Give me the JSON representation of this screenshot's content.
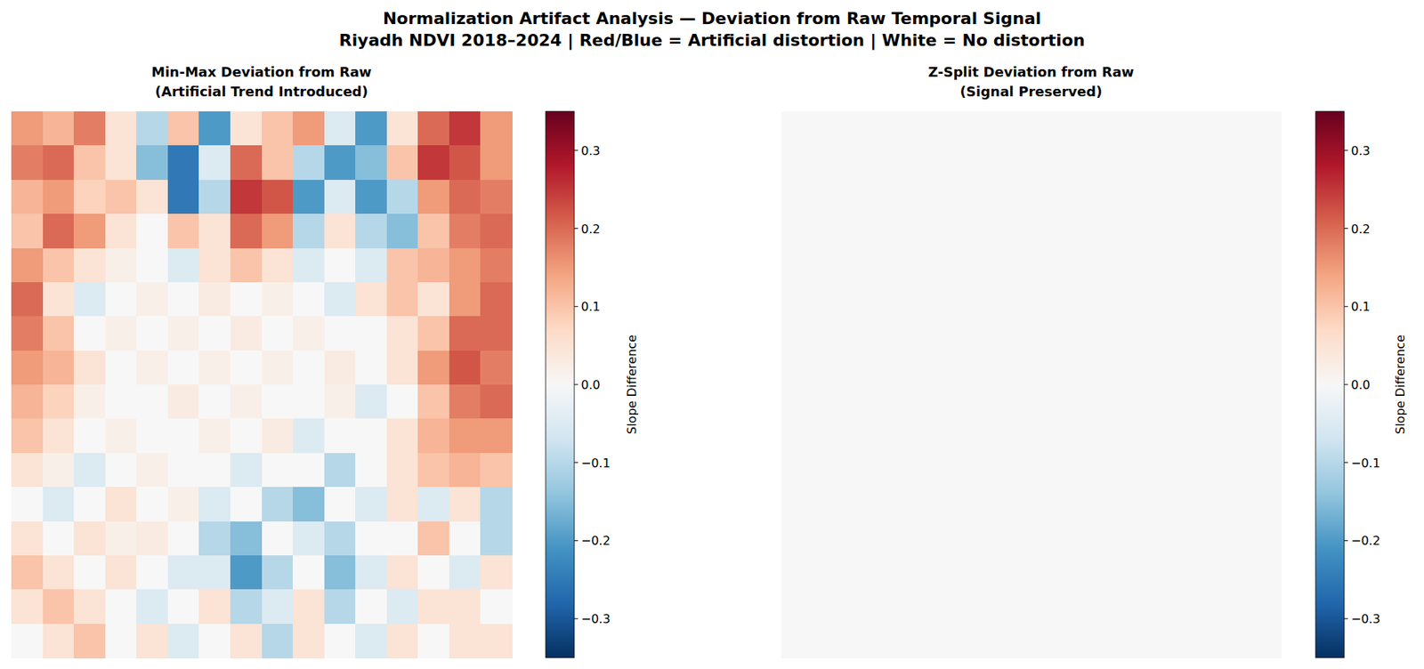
{
  "figure": {
    "title": "Normalization Artifact Analysis — Deviation from Raw Temporal Signal",
    "subtitle": "Riyadh NDVI 2018–2024 | Red/Blue = Artificial distortion | White = No distortion"
  },
  "chart_data": [
    {
      "type": "heatmap",
      "title": "Min-Max Deviation from Raw",
      "subtitle": "(Artificial Trend Introduced)",
      "tick_labels": false,
      "colorbar_label": "Slope Difference",
      "color_range": [
        -0.35,
        0.35
      ],
      "color_ticks": [
        {
          "value": -0.3,
          "label": "−0.3"
        },
        {
          "value": -0.2,
          "label": "−0.2"
        },
        {
          "value": -0.1,
          "label": "−0.1"
        },
        {
          "value": 0,
          "label": "0.0"
        },
        {
          "value": 0.1,
          "label": "0.1"
        },
        {
          "value": 0.2,
          "label": "0.2"
        },
        {
          "value": 0.3,
          "label": "0.3"
        }
      ],
      "values": [
        [
          0.15,
          0.12,
          0.18,
          0.05,
          -0.1,
          0.1,
          -0.2,
          0.05,
          0.1,
          0.15,
          -0.05,
          -0.2,
          0.05,
          0.2,
          0.25,
          0.15
        ],
        [
          0.18,
          0.2,
          0.1,
          0.05,
          -0.15,
          -0.25,
          -0.05,
          0.2,
          0.1,
          -0.1,
          -0.2,
          -0.15,
          0.1,
          0.25,
          0.22,
          0.15
        ],
        [
          0.12,
          0.15,
          0.08,
          0.1,
          0.05,
          -0.25,
          -0.1,
          0.25,
          0.22,
          -0.2,
          -0.05,
          -0.2,
          -0.1,
          0.15,
          0.2,
          0.18
        ],
        [
          0.1,
          0.2,
          0.15,
          0.05,
          0.0,
          0.1,
          0.05,
          0.2,
          0.15,
          -0.1,
          0.05,
          -0.1,
          -0.15,
          0.1,
          0.18,
          0.2
        ],
        [
          0.15,
          0.1,
          0.05,
          0.02,
          0.0,
          -0.05,
          0.05,
          0.1,
          0.05,
          -0.05,
          0.0,
          -0.05,
          0.1,
          0.12,
          0.15,
          0.18
        ],
        [
          0.2,
          0.05,
          -0.05,
          0.0,
          0.02,
          0.0,
          0.03,
          0.0,
          0.02,
          0.0,
          -0.05,
          0.05,
          0.1,
          0.05,
          0.15,
          0.2
        ],
        [
          0.18,
          0.1,
          0.0,
          0.02,
          0.0,
          0.02,
          0.0,
          0.03,
          0.0,
          0.02,
          0.0,
          0.0,
          0.05,
          0.1,
          0.2,
          0.2
        ],
        [
          0.15,
          0.12,
          0.05,
          0.0,
          0.02,
          0.0,
          0.02,
          0.0,
          0.02,
          0.0,
          0.03,
          0.0,
          0.05,
          0.15,
          0.22,
          0.18
        ],
        [
          0.12,
          0.08,
          0.02,
          0.0,
          0.0,
          0.03,
          0.0,
          0.02,
          0.0,
          0.0,
          0.02,
          -0.05,
          0.0,
          0.1,
          0.18,
          0.2
        ],
        [
          0.1,
          0.05,
          0.0,
          0.02,
          0.0,
          0.0,
          0.02,
          0.0,
          0.03,
          -0.05,
          0.0,
          0.0,
          0.05,
          0.12,
          0.15,
          0.15
        ],
        [
          0.05,
          0.02,
          -0.05,
          0.0,
          0.02,
          0.0,
          0.0,
          -0.05,
          0.0,
          0.0,
          -0.1,
          0.0,
          0.05,
          0.1,
          0.12,
          0.1
        ],
        [
          0.0,
          -0.05,
          0.0,
          0.05,
          0.0,
          0.02,
          -0.05,
          0.0,
          -0.1,
          -0.15,
          0.0,
          -0.05,
          0.05,
          -0.05,
          0.05,
          -0.1
        ],
        [
          0.05,
          0.0,
          0.05,
          0.02,
          0.03,
          0.0,
          -0.1,
          -0.15,
          0.0,
          -0.05,
          -0.1,
          0.0,
          0.0,
          0.1,
          0.0,
          -0.1
        ],
        [
          0.1,
          0.05,
          0.0,
          0.05,
          0.0,
          -0.05,
          -0.05,
          -0.2,
          -0.1,
          0.0,
          -0.15,
          -0.05,
          0.05,
          0.0,
          -0.05,
          0.05
        ],
        [
          0.05,
          0.1,
          0.05,
          0.0,
          -0.05,
          0.0,
          0.05,
          -0.1,
          -0.05,
          0.05,
          -0.1,
          0.0,
          -0.05,
          0.05,
          0.05,
          0.0
        ],
        [
          0.0,
          0.05,
          0.1,
          0.0,
          0.05,
          -0.05,
          0.0,
          0.05,
          -0.1,
          0.05,
          0.0,
          -0.05,
          0.05,
          0.0,
          0.05,
          0.05
        ]
      ]
    },
    {
      "type": "heatmap",
      "title": "Z-Split Deviation from Raw",
      "subtitle": "(Signal Preserved)",
      "tick_labels": false,
      "colorbar_label": "Slope Difference",
      "color_range": [
        -0.35,
        0.35
      ],
      "color_ticks": [
        {
          "value": -0.3,
          "label": "−0.3"
        },
        {
          "value": -0.2,
          "label": "−0.2"
        },
        {
          "value": -0.1,
          "label": "−0.1"
        },
        {
          "value": 0,
          "label": "0.0"
        },
        {
          "value": 0.1,
          "label": "0.1"
        },
        {
          "value": 0.2,
          "label": "0.2"
        },
        {
          "value": 0.3,
          "label": "0.3"
        }
      ],
      "values": [
        [
          0,
          0,
          0,
          0,
          0,
          0,
          0,
          0,
          0,
          0,
          0,
          0,
          0,
          0,
          0,
          0
        ],
        [
          0,
          0,
          0,
          0,
          0,
          0,
          0,
          0,
          0,
          0,
          0,
          0,
          0,
          0,
          0,
          0
        ],
        [
          0,
          0,
          0,
          0,
          0,
          0,
          0,
          0,
          0,
          0,
          0,
          0,
          0,
          0,
          0,
          0
        ],
        [
          0,
          0,
          0,
          0,
          0,
          0,
          0,
          0,
          0,
          0,
          0,
          0,
          0,
          0,
          0,
          0
        ],
        [
          0,
          0,
          0,
          0,
          0,
          0,
          0,
          0,
          0,
          0,
          0,
          0,
          0,
          0,
          0,
          0
        ],
        [
          0,
          0,
          0,
          0,
          0,
          0,
          0,
          0,
          0,
          0,
          0,
          0,
          0,
          0,
          0,
          0
        ],
        [
          0,
          0,
          0,
          0,
          0,
          0,
          0,
          0,
          0,
          0,
          0,
          0,
          0,
          0,
          0,
          0
        ],
        [
          0,
          0,
          0,
          0,
          0,
          0,
          0,
          0,
          0,
          0,
          0,
          0,
          0,
          0,
          0,
          0
        ],
        [
          0,
          0,
          0,
          0,
          0,
          0,
          0,
          0,
          0,
          0,
          0,
          0,
          0,
          0,
          0,
          0
        ],
        [
          0,
          0,
          0,
          0,
          0,
          0,
          0,
          0,
          0,
          0,
          0,
          0,
          0,
          0,
          0,
          0
        ],
        [
          0,
          0,
          0,
          0,
          0,
          0,
          0,
          0,
          0,
          0,
          0,
          0,
          0,
          0,
          0,
          0
        ],
        [
          0,
          0,
          0,
          0,
          0,
          0,
          0,
          0,
          0,
          0,
          0,
          0,
          0,
          0,
          0,
          0
        ],
        [
          0,
          0,
          0,
          0,
          0,
          0,
          0,
          0,
          0,
          0,
          0,
          0,
          0,
          0,
          0,
          0
        ],
        [
          0,
          0,
          0,
          0,
          0,
          0,
          0,
          0,
          0,
          0,
          0,
          0,
          0,
          0,
          0,
          0
        ],
        [
          0,
          0,
          0,
          0,
          0,
          0,
          0,
          0,
          0,
          0,
          0,
          0,
          0,
          0,
          0,
          0
        ],
        [
          0,
          0,
          0,
          0,
          0,
          0,
          0,
          0,
          0,
          0,
          0,
          0,
          0,
          0,
          0,
          0
        ]
      ]
    }
  ]
}
